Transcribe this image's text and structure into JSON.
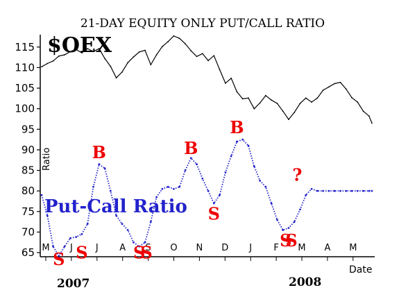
{
  "chart_data": {
    "type": "line",
    "title": "21-DAY EQUITY ONLY PUT/CALL RATIO",
    "oex_label": "$OEX",
    "ratio_label": "Put-Call Ratio",
    "ylabel": "Ratio",
    "xlabel": "Date",
    "ylim": [
      64,
      118
    ],
    "yticks": [
      65,
      70,
      75,
      80,
      85,
      90,
      95,
      100,
      105,
      110,
      115
    ],
    "months": [
      "M",
      "J",
      "J",
      "A",
      "S",
      "O",
      "N",
      "D",
      "J",
      "F",
      "M",
      "A",
      "M"
    ],
    "years": [
      "2007",
      "2008"
    ],
    "legend_position": "none",
    "grid": false,
    "colors": {
      "oex": "#000000",
      "ratio": "#2222cc",
      "signals": "#ee0000"
    },
    "series": [
      {
        "name": "$OEX",
        "x": [
          0,
          4,
          8,
          12,
          16,
          20,
          24,
          28,
          32,
          36,
          40,
          44,
          48,
          52,
          56,
          60,
          64,
          68,
          72,
          76,
          80,
          84,
          88,
          92,
          96,
          100,
          104,
          108,
          112,
          116,
          120,
          124,
          128,
          132,
          136,
          140,
          144,
          148,
          152,
          156,
          160,
          164,
          168,
          172,
          176,
          180,
          184,
          188,
          192,
          196,
          200,
          204,
          208,
          212,
          216,
          220,
          224,
          228,
          230
        ],
        "values": [
          110.2,
          111.0,
          111.6,
          112.8,
          113.1,
          113.9,
          114.4,
          113.6,
          114.6,
          113.9,
          114.6,
          112.2,
          110.3,
          107.5,
          108.9,
          111.2,
          112.6,
          113.8,
          114.2,
          110.7,
          113.1,
          115.1,
          116.3,
          117.7,
          117.1,
          115.8,
          114.1,
          112.7,
          113.4,
          111.7,
          112.9,
          109.5,
          106.2,
          107.4,
          104.1,
          102.4,
          102.6,
          100.0,
          101.4,
          103.2,
          102.1,
          101.3,
          99.4,
          97.4,
          99.1,
          101.3,
          102.6,
          101.6,
          102.6,
          104.5,
          105.3,
          106.1,
          106.4,
          104.8,
          102.7,
          101.6,
          99.4,
          98.2,
          96.5
        ]
      },
      {
        "name": "Put-Call Ratio",
        "x": [
          0,
          4,
          8,
          12,
          16,
          20,
          24,
          28,
          32,
          36,
          40,
          44,
          48,
          52,
          56,
          60,
          64,
          68,
          72,
          76,
          80,
          84,
          88,
          92,
          96,
          100,
          104,
          108,
          112,
          116,
          120,
          124,
          128,
          132,
          136,
          140,
          144,
          148,
          152,
          156,
          160,
          164,
          168,
          172,
          176,
          180,
          184,
          188,
          192,
          196,
          200,
          204,
          208,
          212,
          216,
          220,
          224,
          228,
          230
        ],
        "values": [
          79.0,
          74.0,
          66.5,
          64.2,
          66.5,
          68.5,
          68.8,
          69.5,
          72.0,
          81.0,
          86.5,
          85.5,
          80.0,
          74.0,
          72.0,
          70.5,
          67.5,
          66.5,
          67.5,
          72.5,
          78.5,
          80.5,
          81.0,
          80.5,
          81.0,
          85.0,
          88.0,
          86.5,
          83.0,
          80.0,
          77.0,
          79.0,
          84.5,
          88.5,
          92.0,
          92.5,
          91.0,
          86.0,
          82.5,
          81.0,
          77.0,
          73.0,
          70.5,
          71.0,
          72.5,
          75.5,
          79.0,
          80.5,
          80.0,
          80.0,
          80.0,
          80.0,
          80.0,
          80.0,
          80.0,
          80.0,
          80.0,
          80.0,
          80.0
        ]
      }
    ],
    "annotations": [
      {
        "text": "S",
        "x": 12,
        "y": 62.0
      },
      {
        "text": "S",
        "x": 28,
        "y": 63.6
      },
      {
        "text": "B",
        "x": 40,
        "y": 88.0
      },
      {
        "text": "S",
        "x": 68,
        "y": 63.6
      },
      {
        "text": "S",
        "x": 73,
        "y": 63.6
      },
      {
        "text": "B",
        "x": 104,
        "y": 89.0
      },
      {
        "text": "S",
        "x": 120,
        "y": 73.0
      },
      {
        "text": "B",
        "x": 136,
        "y": 94.0
      },
      {
        "text": "S",
        "x": 170,
        "y": 66.5
      },
      {
        "text": "S",
        "x": 174,
        "y": 66.5
      },
      {
        "text": "?",
        "x": 178,
        "y": 82.5
      }
    ]
  }
}
